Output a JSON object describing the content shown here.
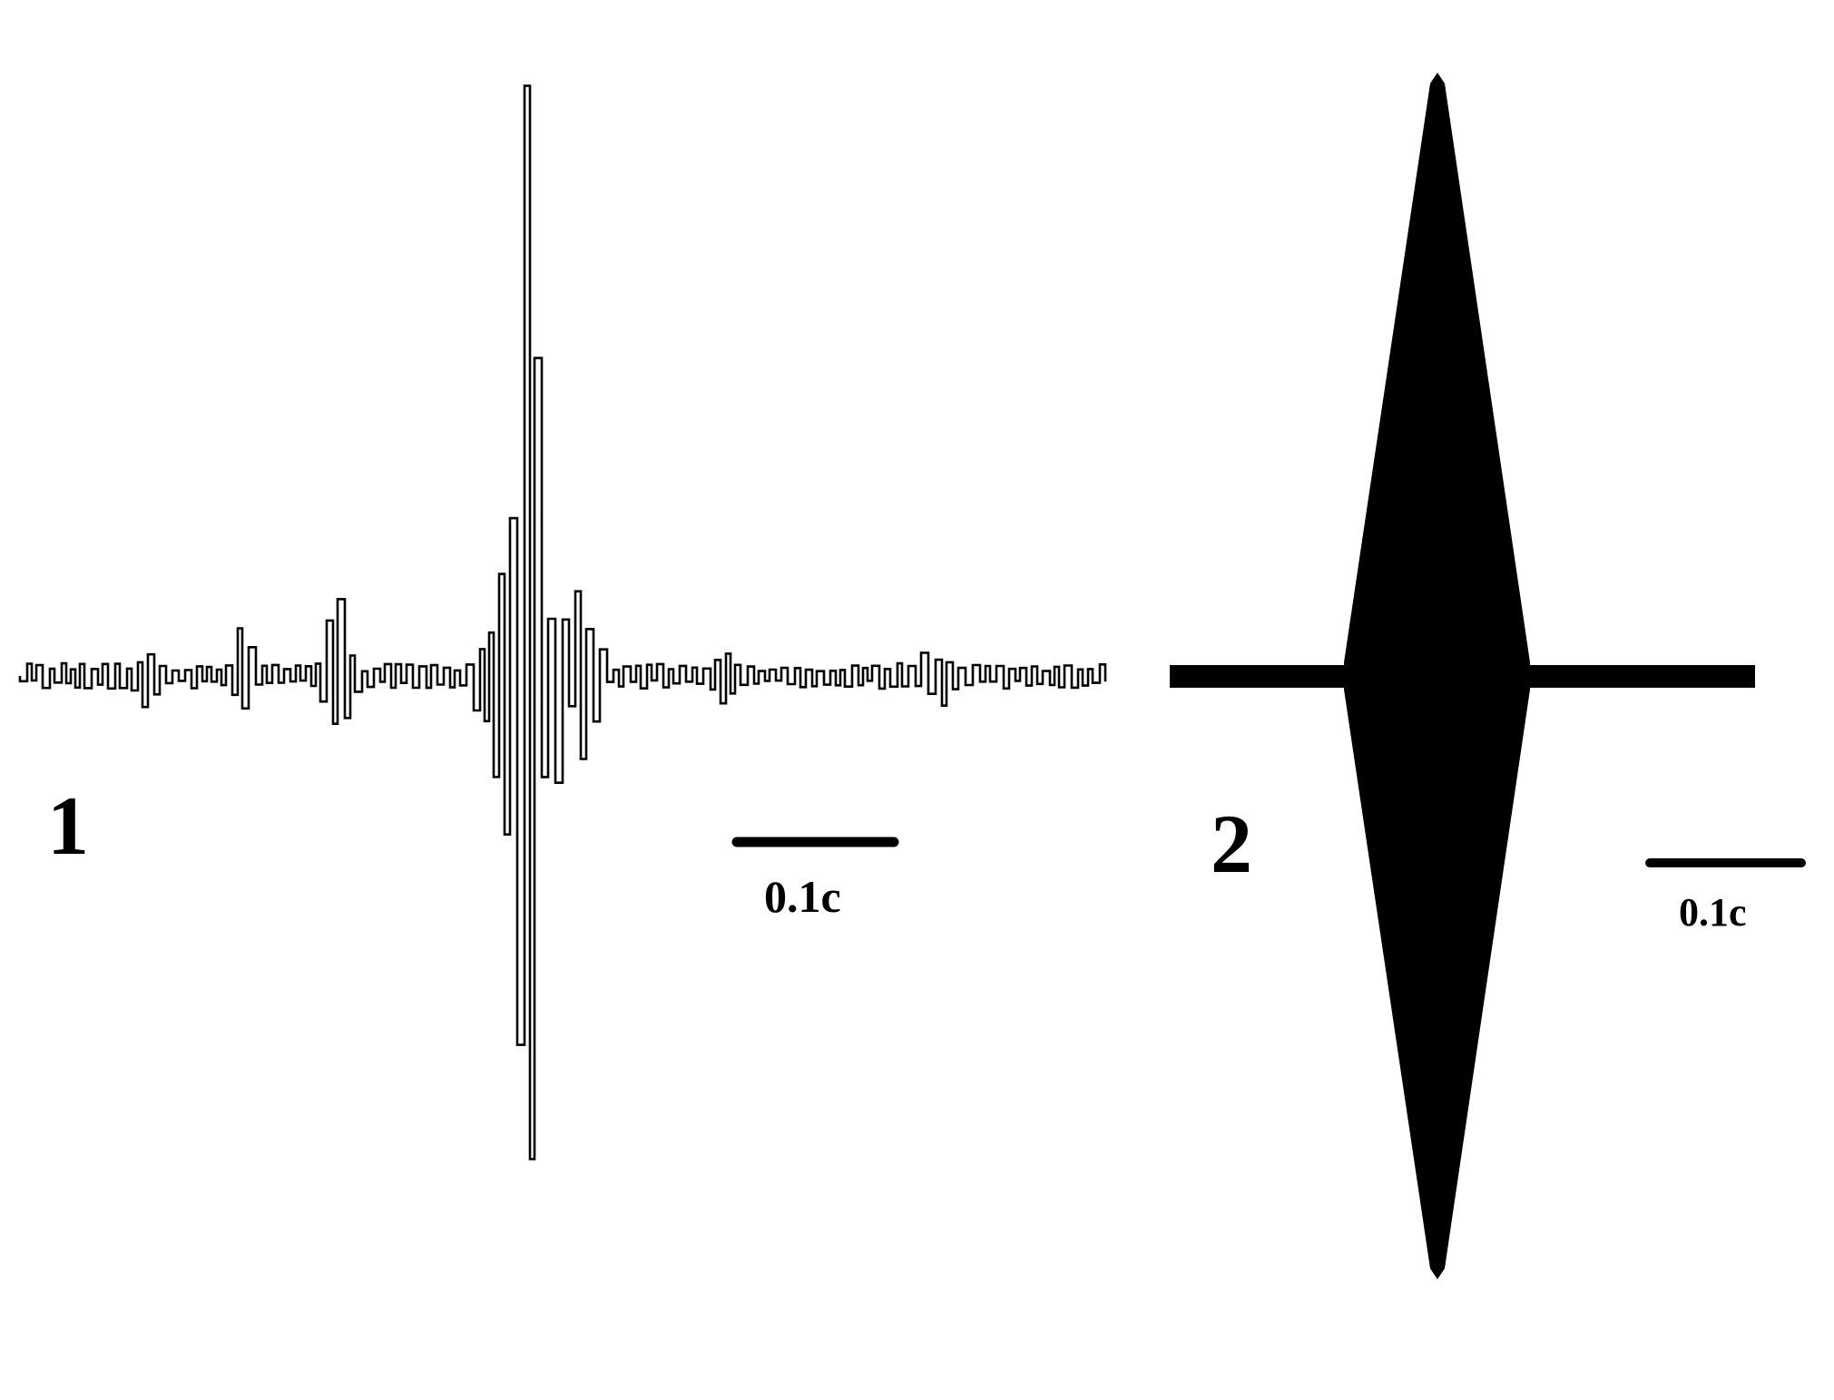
{
  "panels": [
    {
      "label": "1",
      "scale_bar_label": "0.1c",
      "kind": "waveform"
    },
    {
      "label": "2",
      "scale_bar_label": "0.1c",
      "kind": "diamond-envelope"
    }
  ],
  "colors": {
    "ink": "#000000",
    "background": "#ffffff"
  }
}
